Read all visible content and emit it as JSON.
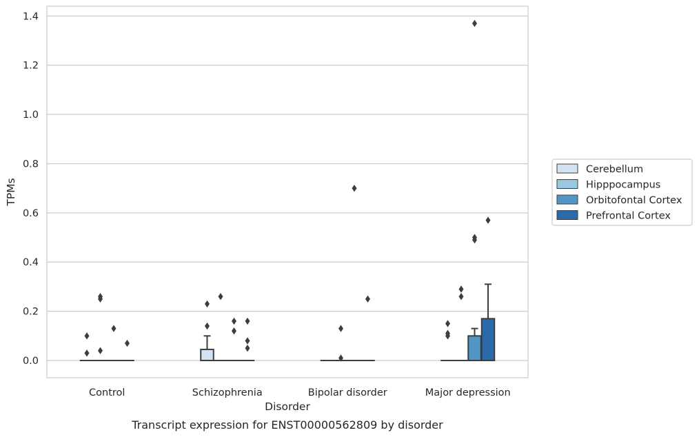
{
  "chart_data": {
    "type": "box",
    "caption": "Transcript expression for ENST00000562809 by disorder",
    "xlabel": "Disorder",
    "ylabel": "TPMs",
    "ylim": [
      -0.07,
      1.44
    ],
    "yticks": [
      "0.0",
      "0.2",
      "0.4",
      "0.6",
      "0.8",
      "1.0",
      "1.2",
      "1.4"
    ],
    "ytick_values": [
      0,
      0.2,
      0.4,
      0.6,
      0.8,
      1.0,
      1.2,
      1.4
    ],
    "grid": true,
    "legend_position": "right",
    "categories": [
      "Control",
      "Schizophrenia",
      "Bipolar disorder",
      "Major depression"
    ],
    "series": [
      {
        "name": "Cerebellum",
        "color": "#d3e3f3",
        "boxes": [
          {
            "q1": 0,
            "median": 0,
            "q3": 0,
            "whisker_low": 0,
            "whisker_high": 0,
            "outliers": [
              0.03,
              0.1
            ]
          },
          {
            "q1": 0,
            "median": 0,
            "q3": 0.045,
            "whisker_low": 0,
            "whisker_high": 0.1,
            "outliers": [
              0.14,
              0.23
            ]
          },
          {
            "q1": 0,
            "median": 0,
            "q3": 0,
            "whisker_low": 0,
            "whisker_high": 0,
            "outliers": []
          },
          {
            "q1": 0,
            "median": 0,
            "q3": 0,
            "whisker_low": 0,
            "whisker_high": 0,
            "outliers": [
              0.1,
              0.11,
              0.15
            ]
          }
        ]
      },
      {
        "name": "Hipppocampus",
        "color": "#9ac8e0",
        "boxes": [
          {
            "q1": 0,
            "median": 0,
            "q3": 0,
            "whisker_low": 0,
            "whisker_high": 0,
            "outliers": [
              0.04,
              0.25,
              0.26
            ]
          },
          {
            "q1": 0,
            "median": 0,
            "q3": 0,
            "whisker_low": 0,
            "whisker_high": 0,
            "outliers": [
              0.26
            ]
          },
          {
            "q1": 0,
            "median": 0,
            "q3": 0,
            "whisker_low": 0,
            "whisker_high": 0,
            "outliers": [
              0.01,
              0.13
            ]
          },
          {
            "q1": 0,
            "median": 0,
            "q3": 0,
            "whisker_low": 0,
            "whisker_high": 0,
            "outliers": [
              0.26,
              0.29
            ]
          }
        ]
      },
      {
        "name": "Orbitofontal Cortex",
        "color": "#5296c6",
        "boxes": [
          {
            "q1": 0,
            "median": 0,
            "q3": 0,
            "whisker_low": 0,
            "whisker_high": 0,
            "outliers": [
              0.13
            ]
          },
          {
            "q1": 0,
            "median": 0,
            "q3": 0,
            "whisker_low": 0,
            "whisker_high": 0,
            "outliers": [
              0.12,
              0.16
            ]
          },
          {
            "q1": 0,
            "median": 0,
            "q3": 0,
            "whisker_low": 0,
            "whisker_high": 0,
            "outliers": [
              0.7
            ]
          },
          {
            "q1": 0,
            "median": 0,
            "q3": 0.1,
            "whisker_low": 0,
            "whisker_high": 0.13,
            "outliers": [
              0.49,
              0.5,
              1.37
            ]
          }
        ]
      },
      {
        "name": "Prefrontal Cortex",
        "color": "#2a6aa9",
        "boxes": [
          {
            "q1": 0,
            "median": 0,
            "q3": 0,
            "whisker_low": 0,
            "whisker_high": 0,
            "outliers": [
              0.07
            ]
          },
          {
            "q1": 0,
            "median": 0,
            "q3": 0,
            "whisker_low": 0,
            "whisker_high": 0,
            "outliers": [
              0.05,
              0.08,
              0.16
            ]
          },
          {
            "q1": 0,
            "median": 0,
            "q3": 0,
            "whisker_low": 0,
            "whisker_high": 0,
            "outliers": [
              0.25
            ]
          },
          {
            "q1": 0,
            "median": 0,
            "q3": 0.17,
            "whisker_low": 0,
            "whisker_high": 0.31,
            "outliers": [
              0.57
            ]
          }
        ]
      }
    ]
  }
}
